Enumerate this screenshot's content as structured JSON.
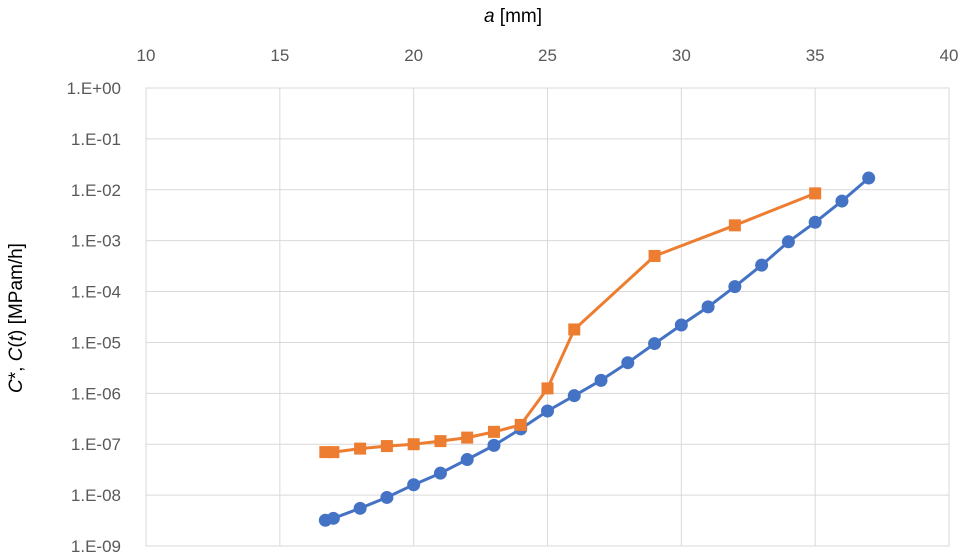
{
  "chart_data": {
    "type": "scatter",
    "xlabel": "a [mm]",
    "ylabel": "C*, C(t) [MPam/h]",
    "xlim": [
      10,
      40
    ],
    "ylim": [
      1e-09,
      1
    ],
    "y_scale": "log",
    "x_axis_position": "top",
    "grid": true,
    "legend": "none",
    "x_ticks": [
      "10",
      "15",
      "20",
      "25",
      "30",
      "35",
      "40"
    ],
    "y_ticks": [
      "1.E+00",
      "1.E-01",
      "1.E-02",
      "1.E-03",
      "1.E-04",
      "1.E-05",
      "1.E-06",
      "1.E-07",
      "1.E-08",
      "1.E-09"
    ],
    "series": [
      {
        "color": "#4472c4",
        "marker": "circle",
        "points": [
          [
            16.7,
            3.2e-09
          ],
          [
            17.0,
            3.5e-09
          ],
          [
            18.0,
            5.5e-09
          ],
          [
            19.0,
            9e-09
          ],
          [
            20.0,
            1.6e-08
          ],
          [
            21.0,
            2.7e-08
          ],
          [
            22.0,
            5e-08
          ],
          [
            23.0,
            9.5e-08
          ],
          [
            24.0,
            2e-07
          ],
          [
            25.0,
            4.5e-07
          ],
          [
            26.0,
            9e-07
          ],
          [
            27.0,
            1.8e-06
          ],
          [
            28.0,
            4e-06
          ],
          [
            29.0,
            9.5e-06
          ],
          [
            30.0,
            2.2e-05
          ],
          [
            31.0,
            5e-05
          ],
          [
            32.0,
            0.000125
          ],
          [
            33.0,
            0.00033
          ],
          [
            34.0,
            0.00095
          ],
          [
            35.0,
            0.0023
          ],
          [
            36.0,
            0.006
          ],
          [
            37.0,
            0.017
          ]
        ]
      },
      {
        "color": "#ed7d31",
        "marker": "square",
        "points": [
          [
            16.7,
            7e-08
          ],
          [
            17.0,
            7e-08
          ],
          [
            18.0,
            8.2e-08
          ],
          [
            19.0,
            9.2e-08
          ],
          [
            20.0,
            1e-07
          ],
          [
            21.0,
            1.15e-07
          ],
          [
            22.0,
            1.35e-07
          ],
          [
            23.0,
            1.75e-07
          ],
          [
            24.0,
            2.4e-07
          ],
          [
            25.0,
            1.25e-06
          ],
          [
            26.0,
            1.8e-05
          ],
          [
            29.0,
            0.0005
          ],
          [
            32.0,
            0.002
          ],
          [
            35.0,
            0.0085
          ]
        ]
      }
    ]
  }
}
